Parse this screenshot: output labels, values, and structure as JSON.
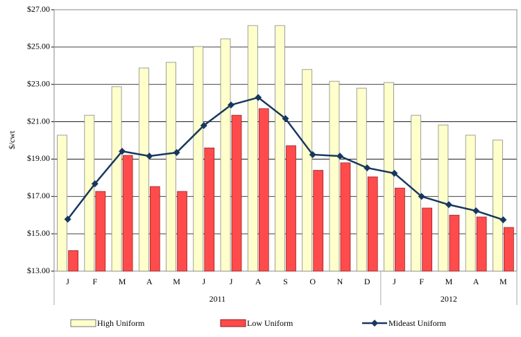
{
  "chart_data": {
    "type": "bar-line",
    "y_axis_label": "$/cwt",
    "categories": [
      "J",
      "F",
      "M",
      "A",
      "M",
      "J",
      "J",
      "A",
      "S",
      "O",
      "N",
      "D",
      "J",
      "F",
      "M",
      "A",
      "M"
    ],
    "category_groups": [
      {
        "label": "2011",
        "size": 12
      },
      {
        "label": "2012",
        "size": 5
      }
    ],
    "series": [
      {
        "name": "High Uniform",
        "kind": "bar",
        "color": "#FFFFCC",
        "values": [
          20.28,
          21.35,
          22.88,
          23.88,
          24.18,
          25.03,
          25.44,
          26.15,
          26.15,
          23.8,
          23.17,
          22.8,
          23.1,
          21.35,
          20.83,
          20.28,
          20.02
        ]
      },
      {
        "name": "Low Uniform",
        "kind": "bar",
        "color": "#FF4B4B",
        "values": [
          14.1,
          17.27,
          19.2,
          17.53,
          17.27,
          19.6,
          21.35,
          21.7,
          19.72,
          18.4,
          18.8,
          18.05,
          17.45,
          16.38,
          16.0,
          15.9,
          15.34
        ]
      },
      {
        "name": "Mideast Uniform",
        "kind": "line",
        "color": "#17375E",
        "values": [
          15.78,
          17.68,
          19.42,
          19.16,
          19.35,
          20.8,
          21.9,
          22.3,
          21.17,
          19.24,
          19.16,
          18.53,
          18.24,
          17.0,
          16.56,
          16.23,
          15.75
        ]
      }
    ],
    "ylim": [
      13,
      27
    ],
    "yticks": [
      {
        "value": 13,
        "label": "$13.00"
      },
      {
        "value": 15,
        "label": "$15.00"
      },
      {
        "value": 17,
        "label": "$17.00"
      },
      {
        "value": 19,
        "label": "$19.00"
      },
      {
        "value": 21,
        "label": "$21.00"
      },
      {
        "value": 23,
        "label": "$23.00"
      },
      {
        "value": 25,
        "label": "$25.00"
      },
      {
        "value": 27,
        "label": "$27.00"
      }
    ],
    "grid": true
  }
}
